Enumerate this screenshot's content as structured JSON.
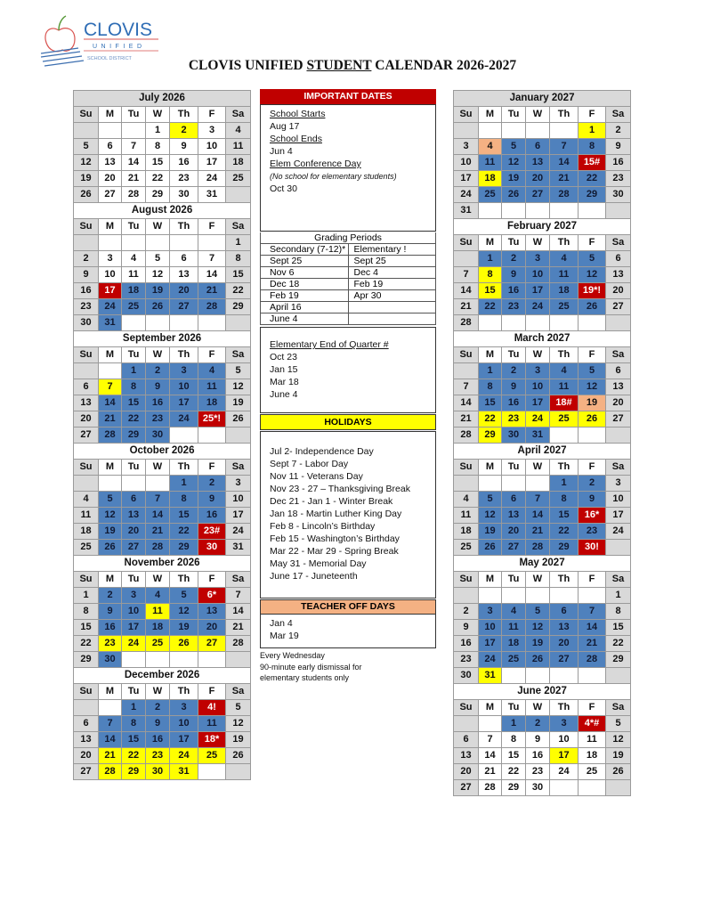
{
  "logo": {
    "name": "CLOVIS",
    "line2": "UNIFIED",
    "line3": "SCHOOL DISTRICT"
  },
  "title": {
    "pre": "CLOVIS UNIFIED ",
    "underlined": "STUDENT",
    "post": " CALENDAR 2026-2027"
  },
  "weekdays": [
    "Su",
    "M",
    "Tu",
    "W",
    "Th",
    "F",
    "Sa"
  ],
  "colors": {
    "school": "#4f81bd",
    "holiday": "#ffff00",
    "special": "#c00000",
    "teacher_off": "#f4b183",
    "weekend": "#d9d9d9"
  },
  "left_months": [
    {
      "title": "July 2026",
      "start": 3,
      "days": 31,
      "school": [],
      "holiday": [
        [
          2,
          2
        ]
      ],
      "teacher": [],
      "special": {}
    },
    {
      "title": "August 2026",
      "start": 6,
      "days": 31,
      "school": [
        [
          18,
          21
        ],
        [
          24,
          28
        ],
        [
          31,
          31
        ]
      ],
      "holiday": [],
      "teacher": [],
      "special": {
        "17": "17"
      }
    },
    {
      "title": "September 2026",
      "start": 2,
      "days": 30,
      "school": [
        [
          1,
          4
        ],
        [
          8,
          11
        ],
        [
          14,
          18
        ],
        [
          21,
          24
        ],
        [
          28,
          30
        ]
      ],
      "holiday": [
        [
          7,
          7
        ]
      ],
      "teacher": [],
      "special": {
        "25": "25*!"
      }
    },
    {
      "title": "October 2026",
      "start": 4,
      "days": 31,
      "school": [
        [
          1,
          2
        ],
        [
          5,
          9
        ],
        [
          12,
          16
        ],
        [
          19,
          22
        ],
        [
          26,
          29
        ]
      ],
      "holiday": [],
      "teacher": [],
      "special": {
        "23": "23#",
        "30": "30"
      }
    },
    {
      "title": "November 2026",
      "start": 0,
      "days": 30,
      "school": [
        [
          2,
          5
        ],
        [
          9,
          10
        ],
        [
          12,
          13
        ],
        [
          16,
          20
        ],
        [
          30,
          30
        ]
      ],
      "holiday": [
        [
          11,
          11
        ],
        [
          23,
          27
        ]
      ],
      "teacher": [],
      "special": {
        "6": "6*"
      }
    },
    {
      "title": "December 2026",
      "start": 2,
      "days": 31,
      "school": [
        [
          1,
          3
        ],
        [
          7,
          11
        ],
        [
          14,
          17
        ]
      ],
      "holiday": [
        [
          21,
          25
        ],
        [
          28,
          31
        ]
      ],
      "teacher": [],
      "special": {
        "4": "4!",
        "18": "18*"
      }
    }
  ],
  "right_months": [
    {
      "title": "January 2027",
      "start": 5,
      "days": 31,
      "school": [
        [
          5,
          8
        ],
        [
          11,
          14
        ],
        [
          19,
          22
        ],
        [
          25,
          29
        ]
      ],
      "holiday": [
        [
          1,
          1
        ],
        [
          18,
          18
        ]
      ],
      "teacher": [
        [
          4,
          4
        ]
      ],
      "special": {
        "15": "15#"
      }
    },
    {
      "title": "February 2027",
      "start": 1,
      "days": 28,
      "school": [
        [
          1,
          5
        ],
        [
          9,
          12
        ],
        [
          16,
          18
        ],
        [
          22,
          26
        ]
      ],
      "holiday": [
        [
          8,
          8
        ],
        [
          15,
          15
        ]
      ],
      "teacher": [],
      "special": {
        "19": "19*!"
      }
    },
    {
      "title": "March 2027",
      "start": 1,
      "days": 31,
      "school": [
        [
          1,
          5
        ],
        [
          8,
          12
        ],
        [
          15,
          17
        ],
        [
          30,
          31
        ]
      ],
      "holiday": [
        [
          22,
          26
        ],
        [
          29,
          29
        ]
      ],
      "teacher": [
        [
          19,
          19
        ]
      ],
      "special": {
        "18": "18#"
      }
    },
    {
      "title": "April 2027",
      "start": 4,
      "days": 30,
      "school": [
        [
          1,
          2
        ],
        [
          5,
          9
        ],
        [
          12,
          15
        ],
        [
          19,
          23
        ],
        [
          26,
          29
        ]
      ],
      "holiday": [],
      "teacher": [],
      "special": {
        "16": "16*",
        "30": "30!"
      }
    },
    {
      "title": "May 2027",
      "start": 6,
      "days": 31,
      "school": [
        [
          3,
          7
        ],
        [
          10,
          14
        ],
        [
          17,
          21
        ],
        [
          24,
          28
        ]
      ],
      "holiday": [
        [
          31,
          31
        ]
      ],
      "teacher": [],
      "special": {}
    },
    {
      "title": "June 2027",
      "start": 2,
      "days": 30,
      "school": [
        [
          1,
          3
        ]
      ],
      "holiday": [
        [
          17,
          17
        ]
      ],
      "teacher": [],
      "special": {
        "4": "4*#"
      }
    }
  ],
  "important": {
    "header": "IMPORTANT DATES",
    "items": [
      {
        "label": "School Starts",
        "date": "Aug 17"
      },
      {
        "label": "School Ends",
        "date": "Jun 4"
      },
      {
        "label": "Elem Conference Day",
        "note": "(No school for elementary students)",
        "date": "Oct 30"
      }
    ]
  },
  "grading": {
    "title": "Grading Periods",
    "secondary_header": "Secondary (7-12)*",
    "elementary_header": "Elementary !",
    "rows": [
      [
        "Sept 25",
        "Sept 25"
      ],
      [
        "Nov 6",
        "Dec 4"
      ],
      [
        "Dec 18",
        "Feb 19"
      ],
      [
        "Feb 19",
        "Apr 30"
      ],
      [
        "April 16",
        ""
      ],
      [
        "June 4",
        ""
      ]
    ]
  },
  "quarter": {
    "title": "Elementary End of Quarter #",
    "dates": [
      "Oct 23",
      "Jan 15",
      "Mar 18",
      "June 4"
    ]
  },
  "holidays": {
    "header": "HOLIDAYS",
    "items": [
      "Jul 2- Independence Day",
      "Sept 7 - Labor Day",
      "Nov 11 - Veterans Day",
      "Nov 23 - 27 – Thanksgiving Break",
      "Dec 21 - Jan 1 - Winter Break",
      "Jan 18 - Martin Luther King Day",
      "Feb 8 - Lincoln’s Birthday",
      "Feb 15 - Washington’s Birthday",
      "Mar 22 - Mar 29 - Spring Break",
      "May 31 - Memorial Day",
      "June 17 - Juneteenth"
    ]
  },
  "teacher_off": {
    "header": "TEACHER OFF DAYS",
    "dates": [
      "Jan 4",
      "Mar 19"
    ]
  },
  "note": [
    "Every Wednesday",
    "90-minute early dismissal for",
    "elementary students only"
  ]
}
